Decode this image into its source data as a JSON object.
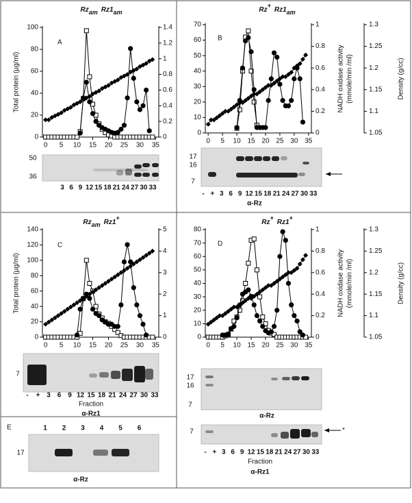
{
  "chart_data": [
    {
      "type": "line",
      "panel": "A",
      "title": [
        {
          "base": "Rz",
          "sub": "am"
        },
        {
          "base": "Rz1",
          "sub": "am"
        }
      ],
      "ylabel": "Total protein (µg/ml)",
      "x": [
        0,
        1,
        2,
        3,
        4,
        5,
        6,
        7,
        8,
        9,
        10,
        11,
        12,
        13,
        14,
        15,
        16,
        17,
        18,
        19,
        20,
        21,
        22,
        23,
        24,
        25,
        26,
        27,
        28,
        29,
        30,
        31,
        32,
        33,
        34
      ],
      "xlim": [
        -1,
        36
      ],
      "xticks": [
        0,
        5,
        10,
        15,
        20,
        25,
        30,
        35
      ],
      "ylim": [
        0,
        100
      ],
      "yticks": [
        0,
        20,
        40,
        60,
        80,
        100
      ],
      "y2lim": [
        0,
        1.4
      ],
      "y2ticks": [
        0,
        0.2,
        0.4,
        0.6,
        0.8,
        1,
        1.2,
        1.4
      ],
      "series": [
        {
          "marker": "square",
          "color": "#000000",
          "values": [
            0,
            0,
            0,
            0,
            0,
            0,
            0,
            0,
            0,
            0,
            0,
            5,
            35,
            97,
            55,
            30,
            20,
            12,
            7,
            4,
            2,
            1,
            0,
            0,
            0,
            0,
            0,
            0,
            0,
            0,
            0,
            0,
            0,
            0,
            0
          ]
        },
        {
          "marker": "circle",
          "color": "#000000",
          "axis": "y2",
          "values": [
            null,
            null,
            null,
            null,
            null,
            null,
            null,
            null,
            null,
            null,
            null,
            0.05,
            0.5,
            0.7,
            0.45,
            0.3,
            0.2,
            0.15,
            0.12,
            0.1,
            0.08,
            0.06,
            0.05,
            0.06,
            0.1,
            0.15,
            0.5,
            1.13,
            0.75,
            0.45,
            0.35,
            0.4,
            0.6,
            0.08,
            null
          ]
        },
        {
          "marker": "diamond",
          "color": "#000000",
          "axis": "y2",
          "values": [
            0.22,
            0.22,
            0.25,
            0.27,
            0.29,
            0.31,
            0.34,
            0.36,
            0.38,
            0.41,
            0.43,
            0.45,
            0.48,
            0.5,
            0.52,
            0.55,
            0.57,
            0.59,
            0.62,
            0.64,
            0.66,
            0.69,
            0.71,
            0.73,
            0.76,
            0.78,
            0.8,
            0.83,
            0.85,
            0.87,
            0.9,
            0.92,
            0.94,
            0.97,
            0.99
          ]
        }
      ]
    },
    {
      "type": "line",
      "panel": "B",
      "title": [
        {
          "base": "Rz",
          "sup": "+"
        },
        {
          "base": "Rz1",
          "sub": "am"
        }
      ],
      "y2label": [
        "NADH oxidase activity",
        "(mmole/min /ml)"
      ],
      "y3label": "Density (g/cc)",
      "x": [
        0,
        1,
        2,
        3,
        4,
        5,
        6,
        7,
        8,
        9,
        10,
        11,
        12,
        13,
        14,
        15,
        16,
        17,
        18,
        19,
        20,
        21,
        22,
        23,
        24,
        25,
        26,
        27,
        28,
        29,
        30,
        31,
        32,
        33,
        34
      ],
      "xlim": [
        -1,
        36
      ],
      "xticks": [
        0,
        5,
        10,
        15,
        20,
        25,
        30,
        35
      ],
      "ylim": [
        0,
        70
      ],
      "yticks": [
        0,
        10,
        20,
        30,
        40,
        50,
        60,
        70
      ],
      "y2lim": [
        0,
        1
      ],
      "y2ticks": [
        0,
        0.2,
        0.4,
        0.6,
        0.8,
        1
      ],
      "y3lim": [
        1.05,
        1.3
      ],
      "y3ticks": [
        1.05,
        1.1,
        1.15,
        1.2,
        1.25,
        1.3
      ],
      "series": [
        {
          "marker": "square",
          "color": "#000000",
          "values": [
            null,
            null,
            null,
            null,
            null,
            null,
            null,
            null,
            null,
            null,
            3,
            15,
            40,
            62,
            66,
            40,
            20,
            5,
            null,
            null,
            null,
            null,
            null,
            null,
            null,
            null,
            null,
            null,
            null,
            null,
            null,
            null,
            null,
            null,
            null
          ]
        },
        {
          "marker": "circle",
          "color": "#000000",
          "axis": "y2",
          "values": [
            null,
            null,
            null,
            null,
            null,
            null,
            null,
            null,
            null,
            null,
            0.05,
            0.3,
            0.6,
            0.85,
            0.88,
            0.75,
            0.4,
            0.05,
            0.05,
            0.05,
            0.05,
            0.3,
            0.5,
            0.74,
            0.7,
            0.45,
            0.3,
            0.25,
            0.25,
            0.3,
            0.5,
            0.6,
            0.5,
            0.1,
            null
          ]
        },
        {
          "marker": "diamond",
          "color": "#000000",
          "axis": "y3",
          "values": [
            1.07,
            1.08,
            1.08,
            1.085,
            1.09,
            1.095,
            1.1,
            1.1,
            1.105,
            1.11,
            1.115,
            1.12,
            1.12,
            1.125,
            1.13,
            1.135,
            1.14,
            1.14,
            1.145,
            1.15,
            1.155,
            1.16,
            1.16,
            1.165,
            1.17,
            1.175,
            1.18,
            1.18,
            1.185,
            1.19,
            1.2,
            1.205,
            1.21,
            1.22,
            1.23
          ]
        }
      ]
    },
    {
      "type": "line",
      "panel": "C",
      "title": [
        {
          "base": "Rz",
          "sub": "am"
        },
        {
          "base": "Rz1",
          "sup": "+"
        }
      ],
      "ylabel": "Total protein (µg/ml)",
      "x": [
        0,
        1,
        2,
        3,
        4,
        5,
        6,
        7,
        8,
        9,
        10,
        11,
        12,
        13,
        14,
        15,
        16,
        17,
        18,
        19,
        20,
        21,
        22,
        23,
        24,
        25,
        26,
        27,
        28,
        29,
        30,
        31,
        32,
        33,
        34
      ],
      "xlim": [
        -1,
        36
      ],
      "xticks": [
        0,
        5,
        10,
        15,
        20,
        25,
        30,
        35
      ],
      "ylim": [
        0,
        140
      ],
      "yticks": [
        0,
        20,
        40,
        60,
        80,
        100,
        120,
        140
      ],
      "y2lim": [
        0,
        5
      ],
      "y2ticks": [
        0,
        1,
        2,
        3,
        4,
        5
      ],
      "series": [
        {
          "marker": "square",
          "color": "#000000",
          "values": [
            0,
            0,
            0,
            0,
            0,
            0,
            0,
            0,
            0,
            0,
            0,
            5,
            50,
            100,
            70,
            60,
            40,
            30,
            25,
            20,
            18,
            14,
            10,
            6,
            2,
            0,
            0,
            0,
            0,
            0,
            0,
            0,
            0,
            0,
            0
          ]
        },
        {
          "marker": "circle",
          "color": "#000000",
          "axis": "y2",
          "values": [
            null,
            null,
            null,
            null,
            null,
            null,
            null,
            null,
            null,
            null,
            0.1,
            1.3,
            1.8,
            2,
            1.8,
            1.3,
            1.1,
            1,
            0.8,
            0.7,
            0.6,
            0.6,
            0.5,
            0.5,
            1.5,
            3.5,
            4.3,
            3.5,
            2.3,
            1.5,
            1,
            0.6,
            0.1,
            null,
            null
          ]
        },
        {
          "marker": "diamond",
          "color": "#000000",
          "axis": "y2",
          "values": [
            0.6,
            0.7,
            0.8,
            0.9,
            1,
            1.1,
            1.2,
            1.3,
            1.4,
            1.5,
            1.6,
            1.7,
            1.8,
            1.9,
            2,
            2.1,
            2.2,
            2.3,
            2.4,
            2.5,
            2.6,
            2.7,
            2.8,
            2.9,
            3,
            3.1,
            3.2,
            3.3,
            3.4,
            3.5,
            3.6,
            3.7,
            3.8,
            3.9,
            4
          ]
        }
      ]
    },
    {
      "type": "line",
      "panel": "D",
      "title": [
        {
          "base": "Rz",
          "sup": "+"
        },
        {
          "base": "Rz1",
          "sup": "+"
        }
      ],
      "y2label": [
        "NADH oxidase activity",
        "(mmole/min /ml)"
      ],
      "y3label": "Density (g/cc)",
      "x": [
        0,
        1,
        2,
        3,
        4,
        5,
        6,
        7,
        8,
        9,
        10,
        11,
        12,
        13,
        14,
        15,
        16,
        17,
        18,
        19,
        20,
        21,
        22,
        23,
        24,
        25,
        26,
        27,
        28,
        29,
        30,
        31,
        32,
        33,
        34
      ],
      "xlim": [
        -1,
        36
      ],
      "xticks": [
        0,
        5,
        10,
        15,
        20,
        25,
        30,
        35
      ],
      "ylim": [
        0,
        80
      ],
      "yticks": [
        0,
        10,
        20,
        30,
        40,
        50,
        60,
        70,
        80
      ],
      "y2lim": [
        0,
        1
      ],
      "y2ticks": [
        0,
        0.2,
        0.4,
        0.6,
        0.8,
        1
      ],
      "y3lim": [
        1.05,
        1.3
      ],
      "y3ticks": [
        1.05,
        1.1,
        1.15,
        1.2,
        1.25,
        1.3
      ],
      "series": [
        {
          "marker": "square",
          "color": "#000000",
          "values": [
            0,
            0,
            0,
            0,
            0,
            0,
            1,
            2,
            6,
            12,
            15,
            20,
            27,
            40,
            55,
            72,
            73,
            50,
            30,
            15,
            10,
            5,
            3,
            2,
            0,
            0,
            0,
            0,
            0,
            0,
            0,
            0,
            0,
            0,
            0
          ]
        },
        {
          "marker": "circle",
          "color": "#000000",
          "axis": "y2",
          "values": [
            null,
            null,
            null,
            null,
            null,
            0.02,
            0.02,
            0.03,
            0.08,
            0.1,
            0.18,
            0.3,
            0.4,
            0.42,
            0.44,
            0.38,
            0.3,
            0.2,
            0.15,
            0.1,
            0.06,
            0.04,
            0.05,
            0.1,
            0.25,
            0.75,
            0.98,
            0.9,
            0.5,
            0.3,
            0.2,
            0.15,
            0.05,
            0.02,
            null
          ]
        },
        {
          "marker": "diamond",
          "color": "#000000",
          "axis": "y3",
          "values": [
            1.08,
            1.085,
            1.09,
            1.095,
            1.1,
            1.1,
            1.105,
            1.11,
            1.115,
            1.12,
            1.12,
            1.125,
            1.13,
            1.135,
            1.14,
            1.14,
            1.145,
            1.15,
            1.155,
            1.16,
            1.165,
            1.17,
            1.17,
            1.175,
            1.18,
            1.185,
            1.19,
            1.195,
            1.2,
            1.2,
            1.205,
            1.21,
            1.22,
            1.23,
            1.24
          ]
        }
      ]
    }
  ],
  "gels": [
    {
      "mw_labels": [
        "50",
        "36"
      ],
      "lane_labels": [
        "3",
        "6",
        "9",
        "12",
        "15",
        "18",
        "21",
        "24",
        "27",
        "30",
        "33"
      ]
    },
    {
      "mw_labels": [
        "17",
        "16",
        "7"
      ],
      "lane_labels": [
        "-",
        "+",
        "3",
        "6",
        "9",
        "12",
        "15",
        "18",
        "21",
        "24",
        "27",
        "30",
        "33"
      ],
      "caption": "α-Rz"
    },
    {
      "mw_labels": [
        "7"
      ],
      "lane_labels": [
        "-",
        "+",
        "3",
        "6",
        "9",
        "12",
        "15",
        "18",
        "21",
        "24",
        "27",
        "30",
        "33"
      ],
      "axis_label": "Fraction",
      "caption": "α-Rz1"
    },
    {
      "mw_labels": [
        "17",
        "16",
        "7"
      ],
      "caption": "α-Rz"
    },
    {
      "mw_labels": [
        "7"
      ],
      "lane_labels": [
        "-",
        "+",
        "3",
        "6",
        "9",
        "12",
        "15",
        "18",
        "21",
        "24",
        "27",
        "30",
        "33"
      ],
      "axis_label": "Fraction",
      "caption": "α-Rz1",
      "marker": "*"
    },
    {
      "panel": "E",
      "mw_labels": [
        "17"
      ],
      "lane_labels": [
        "1",
        "2",
        "3",
        "4",
        "5",
        "6"
      ],
      "caption": "α-Rz"
    }
  ]
}
